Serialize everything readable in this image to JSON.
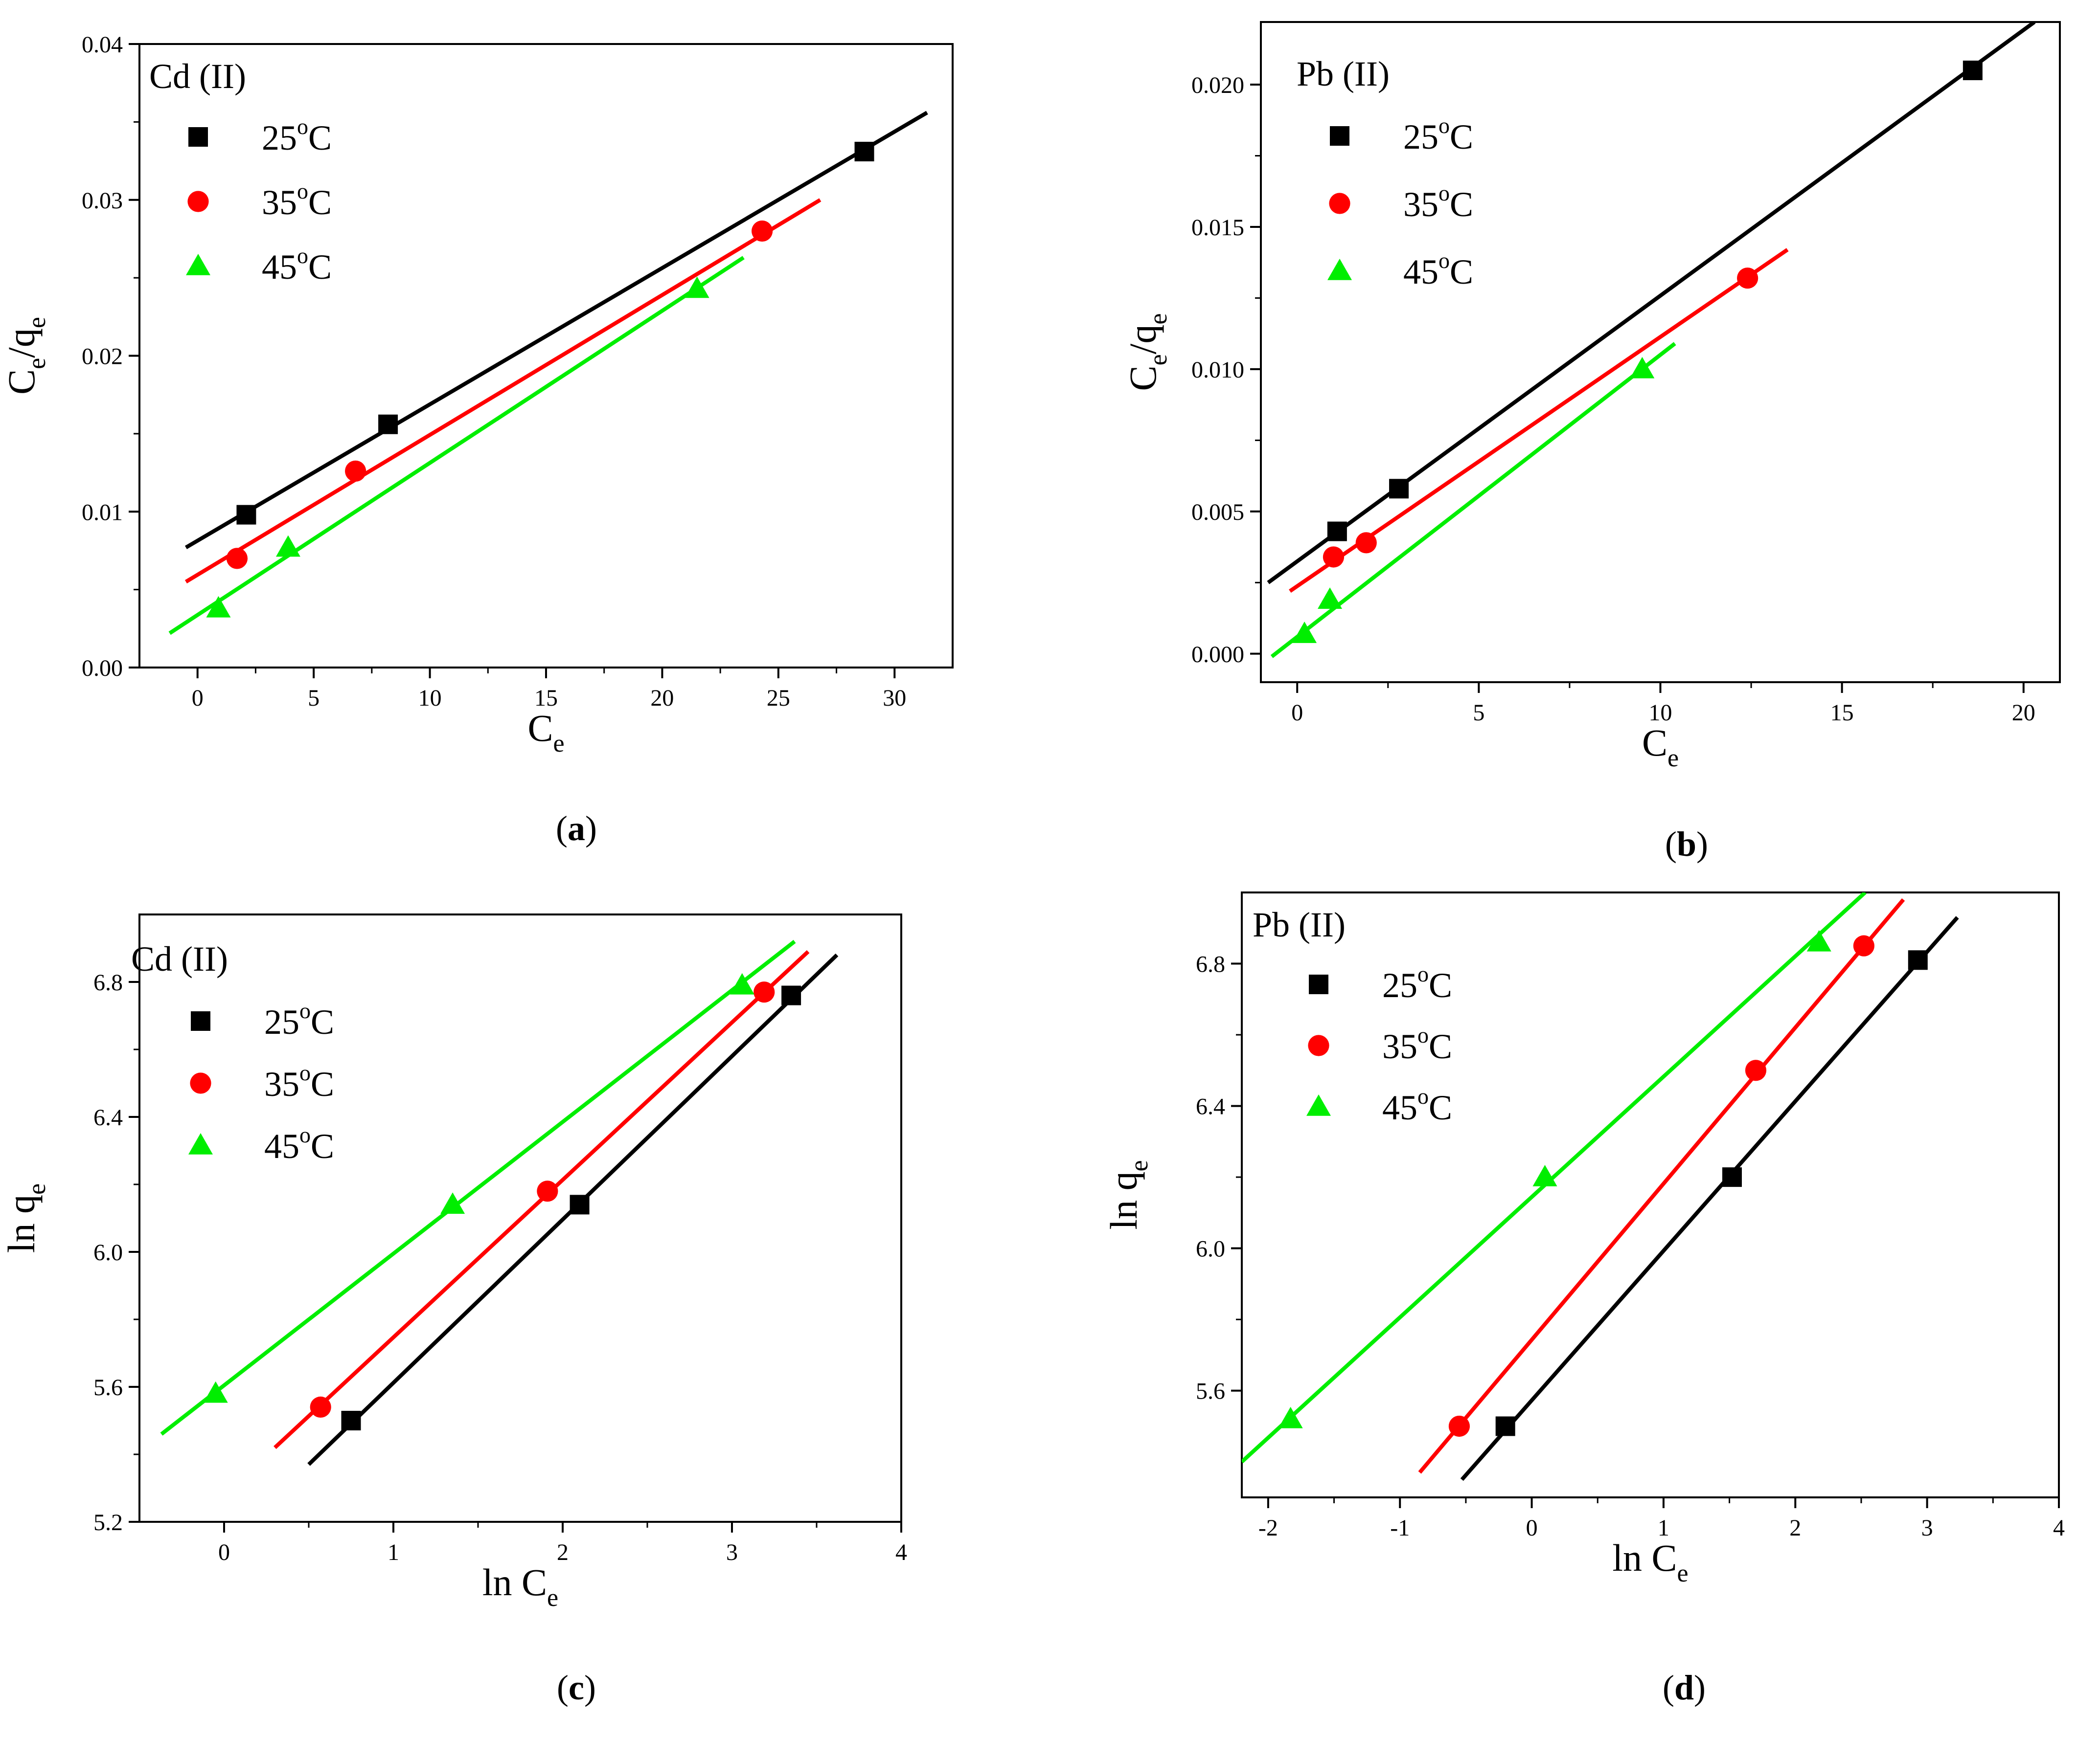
{
  "chart_data": [
    {
      "id": "a",
      "type": "scatter",
      "caption": "a",
      "title": "Cd (II)",
      "xlabel": {
        "main": "C",
        "sub": "e"
      },
      "ylabel": {
        "main": "C",
        "sub": "e",
        "main2": "/q",
        "sub2": "e"
      },
      "xlim": [
        -2.5,
        32.5
      ],
      "ylim": [
        0.0,
        0.04
      ],
      "xticks": [
        0,
        5,
        10,
        15,
        20,
        25,
        30
      ],
      "xtick_labels": [
        "0",
        "5",
        "10",
        "15",
        "20",
        "25",
        "30"
      ],
      "yticks": [
        0.0,
        0.01,
        0.02,
        0.03,
        0.04
      ],
      "ytick_labels": [
        "0.00",
        "0.01",
        "0.02",
        "0.03",
        "0.04"
      ],
      "legend_position": "top-left",
      "series": [
        {
          "name": "25",
          "unit": "C",
          "color": "#000000",
          "marker": "square",
          "points": [
            [
              2.1,
              0.0098
            ],
            [
              8.2,
              0.0156
            ],
            [
              28.7,
              0.0331
            ]
          ],
          "fit_x": [
            -0.5,
            31.4
          ],
          "fit_y": [
            0.0077,
            0.0356
          ]
        },
        {
          "name": "35",
          "unit": "C",
          "color": "#ff0000",
          "marker": "circle",
          "points": [
            [
              1.7,
              0.007
            ],
            [
              6.8,
              0.0126
            ],
            [
              24.3,
              0.028
            ]
          ],
          "fit_x": [
            -0.5,
            26.8
          ],
          "fit_y": [
            0.0055,
            0.03
          ]
        },
        {
          "name": "45",
          "unit": "C",
          "color": "#00ee00",
          "marker": "triangle",
          "points": [
            [
              0.9,
              0.0038
            ],
            [
              3.9,
              0.0077
            ],
            [
              21.5,
              0.0243
            ]
          ],
          "fit_x": [
            -1.2,
            23.5
          ],
          "fit_y": [
            0.0022,
            0.0263
          ]
        }
      ]
    },
    {
      "id": "b",
      "type": "scatter",
      "caption": "b",
      "title": "Pb (II)",
      "xlabel": {
        "main": "C",
        "sub": "e"
      },
      "ylabel": {
        "main": "C",
        "sub": "e",
        "main2": "/q",
        "sub2": "e"
      },
      "xlim": [
        -1.0,
        21.0
      ],
      "ylim": [
        -0.001,
        0.0222
      ],
      "xticks": [
        0,
        5,
        10,
        15,
        20
      ],
      "xtick_labels": [
        "0",
        "5",
        "10",
        "15",
        "20"
      ],
      "yticks": [
        0.0,
        0.005,
        0.01,
        0.015,
        0.02
      ],
      "ytick_labels": [
        "0.000",
        "0.005",
        "0.010",
        "0.015",
        "0.020"
      ],
      "legend_position": "top-left",
      "series": [
        {
          "name": "25",
          "unit": "C",
          "color": "#000000",
          "marker": "square",
          "points": [
            [
              1.1,
              0.0043
            ],
            [
              2.8,
              0.0058
            ],
            [
              18.6,
              0.0205
            ]
          ],
          "fit_x": [
            -0.8,
            20.3
          ],
          "fit_y": [
            0.0025,
            0.0222
          ]
        },
        {
          "name": "35",
          "unit": "C",
          "color": "#ff0000",
          "marker": "circle",
          "points": [
            [
              1.0,
              0.0034
            ],
            [
              1.9,
              0.0039
            ],
            [
              12.4,
              0.0132
            ]
          ],
          "fit_x": [
            -0.2,
            13.5
          ],
          "fit_y": [
            0.0022,
            0.0142
          ]
        },
        {
          "name": "45",
          "unit": "C",
          "color": "#00ee00",
          "marker": "triangle",
          "points": [
            [
              0.2,
              0.0007
            ],
            [
              0.9,
              0.0019
            ],
            [
              9.5,
              0.01
            ]
          ],
          "fit_x": [
            -0.7,
            10.4
          ],
          "fit_y": [
            -0.0001,
            0.0109
          ]
        }
      ]
    },
    {
      "id": "c",
      "type": "scatter",
      "caption": "c",
      "title": "Cd (II)",
      "xlabel": {
        "main": "ln C",
        "sub": "e"
      },
      "ylabel": {
        "main": "ln q",
        "sub": "e"
      },
      "xlim": [
        -0.5,
        4.0
      ],
      "ylim": [
        5.2,
        7.0
      ],
      "xticks": [
        0,
        1,
        2,
        3,
        4
      ],
      "xtick_labels": [
        "0",
        "1",
        "2",
        "3",
        "4"
      ],
      "yticks": [
        5.2,
        5.6,
        6.0,
        6.4,
        6.8
      ],
      "ytick_labels": [
        "5.2",
        "5.6",
        "6.0",
        "6.4",
        "6.8"
      ],
      "legend_position": "top-left",
      "series": [
        {
          "name": "25",
          "unit": "C",
          "color": "#000000",
          "marker": "square",
          "points": [
            [
              0.75,
              5.5
            ],
            [
              2.1,
              6.14
            ],
            [
              3.35,
              6.76
            ]
          ],
          "fit_x": [
            0.5,
            3.62
          ],
          "fit_y": [
            5.37,
            6.88
          ]
        },
        {
          "name": "35",
          "unit": "C",
          "color": "#ff0000",
          "marker": "circle",
          "points": [
            [
              0.57,
              5.54
            ],
            [
              1.91,
              6.18
            ],
            [
              3.19,
              6.77
            ]
          ],
          "fit_x": [
            0.3,
            3.45
          ],
          "fit_y": [
            5.42,
            6.89
          ]
        },
        {
          "name": "45",
          "unit": "C",
          "color": "#00ee00",
          "marker": "triangle",
          "points": [
            [
              -0.05,
              5.58
            ],
            [
              1.35,
              6.14
            ],
            [
              3.06,
              6.79
            ]
          ],
          "fit_x": [
            -0.37,
            3.37
          ],
          "fit_y": [
            5.46,
            6.92
          ]
        }
      ]
    },
    {
      "id": "d",
      "type": "scatter",
      "caption": "d",
      "title": "Pb (II)",
      "xlabel": {
        "main": "ln C",
        "sub": "e"
      },
      "ylabel": {
        "main": "ln q",
        "sub": "e"
      },
      "xlim": [
        -2.2,
        4.0
      ],
      "ylim": [
        5.3,
        7.0
      ],
      "xticks": [
        -2,
        -1,
        0,
        1,
        2,
        3,
        4
      ],
      "xtick_labels": [
        "-2",
        "-1",
        "0",
        "1",
        "2",
        "3",
        "4"
      ],
      "yticks": [
        5.6,
        6.0,
        6.4,
        6.8
      ],
      "ytick_labels": [
        "5.6",
        "6.0",
        "6.4",
        "6.8"
      ],
      "legend_position": "top-left",
      "series": [
        {
          "name": "25",
          "unit": "C",
          "color": "#000000",
          "marker": "square",
          "points": [
            [
              -0.2,
              5.5
            ],
            [
              1.52,
              6.2
            ],
            [
              2.93,
              6.81
            ]
          ],
          "fit_x": [
            -0.53,
            3.23
          ],
          "fit_y": [
            5.35,
            6.93
          ]
        },
        {
          "name": "35",
          "unit": "C",
          "color": "#ff0000",
          "marker": "circle",
          "points": [
            [
              -0.55,
              5.5
            ],
            [
              1.7,
              6.5
            ],
            [
              2.52,
              6.85
            ]
          ],
          "fit_x": [
            -0.85,
            2.82
          ],
          "fit_y": [
            5.37,
            6.98
          ]
        },
        {
          "name": "45",
          "unit": "C",
          "color": "#00ee00",
          "marker": "triangle",
          "points": [
            [
              -1.83,
              5.52
            ],
            [
              0.1,
              6.2
            ],
            [
              2.18,
              6.86
            ]
          ],
          "fit_x": [
            -2.2,
            2.53
          ],
          "fit_y": [
            5.4,
            7.0
          ]
        }
      ]
    }
  ]
}
